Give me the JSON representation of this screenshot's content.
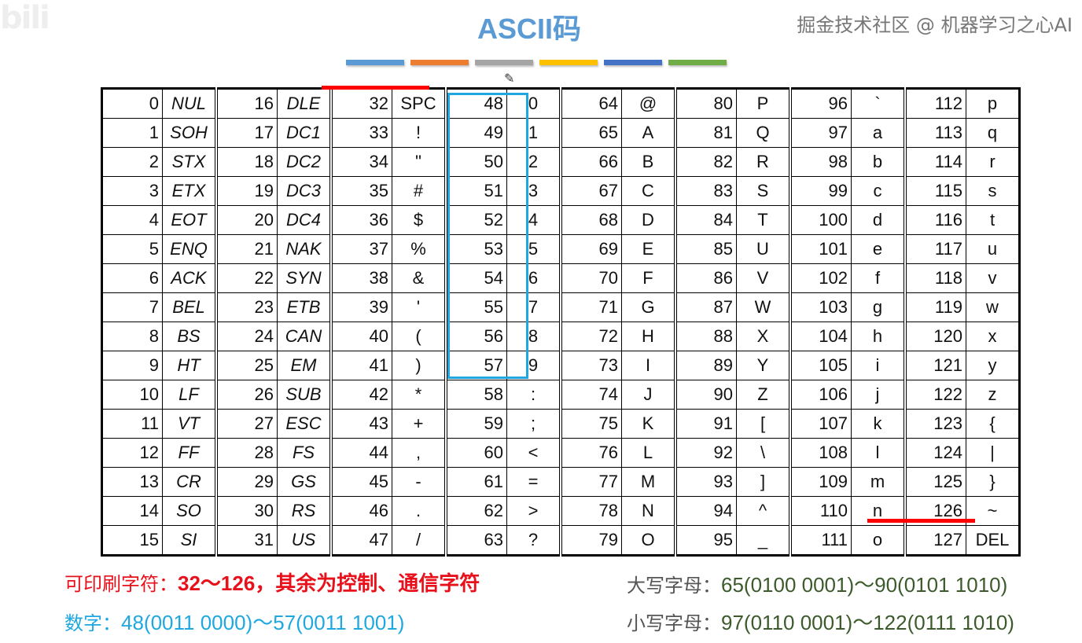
{
  "logo": "bilibili",
  "title": "ASCII码",
  "color_bars": [
    "#5b9bd5",
    "#ed7d31",
    "#a5a5a5",
    "#ffc000",
    "#4472c4",
    "#70ad47"
  ],
  "table": {
    "groups": [
      {
        "codes": [
          0,
          1,
          2,
          3,
          4,
          5,
          6,
          7,
          8,
          9,
          10,
          11,
          12,
          13,
          14,
          15
        ],
        "chars": [
          "NUL",
          "SOH",
          "STX",
          "ETX",
          "EOT",
          "ENQ",
          "ACK",
          "BEL",
          "BS",
          "HT",
          "LF",
          "VT",
          "FF",
          "CR",
          "SO",
          "SI"
        ],
        "italic": true
      },
      {
        "codes": [
          16,
          17,
          18,
          19,
          20,
          21,
          22,
          23,
          24,
          25,
          26,
          27,
          28,
          29,
          30,
          31
        ],
        "chars": [
          "DLE",
          "DC1",
          "DC2",
          "DC3",
          "DC4",
          "NAK",
          "SYN",
          "ETB",
          "CAN",
          "EM",
          "SUB",
          "ESC",
          "FS",
          "GS",
          "RS",
          "US"
        ],
        "italic": true
      },
      {
        "codes": [
          32,
          33,
          34,
          35,
          36,
          37,
          38,
          39,
          40,
          41,
          42,
          43,
          44,
          45,
          46,
          47
        ],
        "chars": [
          "SPC",
          "!",
          "\"",
          "#",
          "$",
          "%",
          "&",
          "'",
          "(",
          ")",
          "*",
          "+",
          ",",
          "-",
          ".",
          "/"
        ]
      },
      {
        "codes": [
          48,
          49,
          50,
          51,
          52,
          53,
          54,
          55,
          56,
          57,
          58,
          59,
          60,
          61,
          62,
          63
        ],
        "chars": [
          "0",
          "1",
          "2",
          "3",
          "4",
          "5",
          "6",
          "7",
          "8",
          "9",
          ":",
          ";",
          "<",
          "=",
          ">",
          "?"
        ]
      },
      {
        "codes": [
          64,
          65,
          66,
          67,
          68,
          69,
          70,
          71,
          72,
          73,
          74,
          75,
          76,
          77,
          78,
          79
        ],
        "chars": [
          "@",
          "A",
          "B",
          "C",
          "D",
          "E",
          "F",
          "G",
          "H",
          "I",
          "J",
          "K",
          "L",
          "M",
          "N",
          "O"
        ]
      },
      {
        "codes": [
          80,
          81,
          82,
          83,
          84,
          85,
          86,
          87,
          88,
          89,
          90,
          91,
          92,
          93,
          94,
          95
        ],
        "chars": [
          "P",
          "Q",
          "R",
          "S",
          "T",
          "U",
          "V",
          "W",
          "X",
          "Y",
          "Z",
          "[",
          "\\",
          "]",
          "^",
          "_"
        ]
      },
      {
        "codes": [
          96,
          97,
          98,
          99,
          100,
          101,
          102,
          103,
          104,
          105,
          106,
          107,
          108,
          109,
          110,
          111
        ],
        "chars": [
          "`",
          "a",
          "b",
          "c",
          "d",
          "e",
          "f",
          "g",
          "h",
          "i",
          "j",
          "k",
          "l",
          "m",
          "n",
          "o"
        ]
      },
      {
        "codes": [
          112,
          113,
          114,
          115,
          116,
          117,
          118,
          119,
          120,
          121,
          122,
          123,
          124,
          125,
          126,
          127
        ],
        "chars": [
          "p",
          "q",
          "r",
          "s",
          "t",
          "u",
          "v",
          "w",
          "x",
          "y",
          "z",
          "{",
          "|",
          "}",
          "~",
          "DEL"
        ]
      }
    ]
  },
  "notes": {
    "printable_label": "可印刷字符：",
    "printable_value": "32～126，其余为控制、通信字符",
    "digits_label": "数字：",
    "digits_value": "48(0011 0000)～57(0011 1001)",
    "upper_label": "大写字母：",
    "upper_value": "65(0100 0001)～90(0101 1010)",
    "lower_label": "小写字母：",
    "lower_value": "97(0110 0001)～122(0111 1010)"
  },
  "watermark": "掘金技术社区 @ 机器学习之心AI",
  "colors": {
    "title": "#5b9bd5",
    "highlight_red": "#ff0000",
    "digits_box": "#1fa7e0"
  }
}
